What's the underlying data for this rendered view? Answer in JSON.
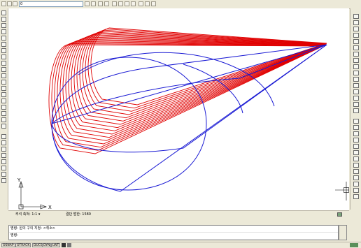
{
  "toolbar": {
    "layer_value": "0",
    "icons": [
      "layer-props-icon",
      "layer-prev-icon",
      "color-icon",
      "zoom-realtime-icon",
      "pan-icon",
      "zoom-window-icon",
      "zoom-prev-icon",
      "properties-icon",
      "design-center-icon",
      "tool-palette-icon",
      "sheet-set-icon",
      "markup-icon",
      "calc-icon"
    ]
  },
  "status_tabs": {
    "zoom_label": "주석 축척: 1:1 ▾",
    "scale_label": "결단 범한: 1580"
  },
  "command_line": {
    "history": "명령: 원의 구의 지정: <취소>",
    "prompt": "명령:"
  },
  "statusbar": {
    "toggles": [
      "OSNAP",
      "OTRACK",
      "DUCS",
      "DYN",
      "LWT"
    ]
  },
  "ucs": {
    "y_label": "Y",
    "x_label": "X"
  }
}
